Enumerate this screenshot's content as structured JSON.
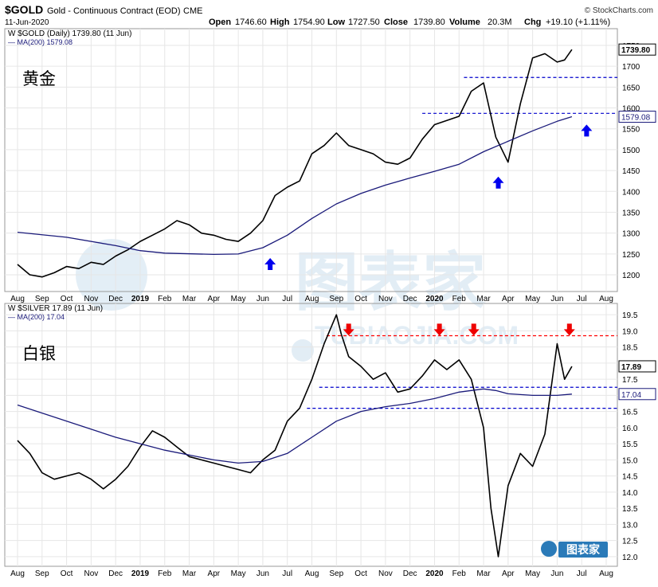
{
  "header": {
    "symbol": "$GOLD",
    "name": "Gold - Continuous Contract (EOD)",
    "exchange": "CME",
    "date": "11-Jun-2020",
    "source": "© StockCharts.com",
    "open_label": "Open",
    "open": "1746.60",
    "high_label": "High",
    "high": "1754.90",
    "low_label": "Low",
    "low": "1727.50",
    "close_label": "Close",
    "close": "1739.80",
    "volume_label": "Volume",
    "volume": "20.3M",
    "chg_label": "Chg",
    "chg": "+19.10 (+1.11%)"
  },
  "watermark": {
    "cn": "图表家",
    "en": "TUBIAOJIA.COM",
    "logo_text": "图表家"
  },
  "colors": {
    "price": "#000000",
    "ma": "#1a1a7a",
    "support": "#0000cc",
    "resistance": "#ff0000",
    "arrow_up": "#0000ee",
    "arrow_down": "#ee0000",
    "grid": "#e6e6e6"
  },
  "chart_data": [
    {
      "type": "line",
      "id": "gold",
      "panel_label": "黄金",
      "legend": [
        {
          "text": "$GOLD (Daily) 1739.80 (11 Jun)",
          "color": "#000000"
        },
        {
          "text": "MA(200) 1579.08",
          "color": "#1a1a7a"
        }
      ],
      "x_ticks": [
        "Aug",
        "Sep",
        "Oct",
        "Nov",
        "Dec",
        "2019",
        "Feb",
        "Mar",
        "Apr",
        "May",
        "Jun",
        "Jul",
        "Aug",
        "Sep",
        "Oct",
        "Nov",
        "Dec",
        "2020",
        "Feb",
        "Mar",
        "Apr",
        "May",
        "Jun",
        "Jul",
        "Aug"
      ],
      "y_ticks": [
        1200,
        1250,
        1300,
        1350,
        1400,
        1450,
        1500,
        1550,
        1600,
        1650,
        1700,
        1750
      ],
      "ylim": [
        1160,
        1790
      ],
      "last_price_label": "1739.80",
      "ma_label": "1579.08",
      "series": [
        {
          "name": "$GOLD (Daily)",
          "x": [
            0,
            0.5,
            1,
            1.5,
            2,
            2.5,
            3,
            3.5,
            4,
            4.5,
            5,
            5.5,
            6,
            6.5,
            7,
            7.5,
            8,
            8.5,
            9,
            9.5,
            10,
            10.5,
            11,
            11.5,
            12,
            12.5,
            13,
            13.5,
            14,
            14.5,
            15,
            15.5,
            16,
            16.5,
            17,
            17.5,
            18,
            18.5,
            19,
            19.5,
            20,
            20.5,
            21,
            21.5,
            22,
            22.3,
            22.6
          ],
          "values": [
            1225,
            1200,
            1195,
            1205,
            1220,
            1215,
            1230,
            1225,
            1245,
            1260,
            1280,
            1295,
            1310,
            1330,
            1320,
            1300,
            1295,
            1285,
            1280,
            1300,
            1330,
            1390,
            1410,
            1425,
            1490,
            1510,
            1540,
            1510,
            1500,
            1490,
            1470,
            1465,
            1480,
            1525,
            1560,
            1570,
            1580,
            1640,
            1660,
            1530,
            1470,
            1610,
            1720,
            1730,
            1710,
            1715,
            1740
          ]
        },
        {
          "name": "MA(200)",
          "x": [
            0,
            2,
            4,
            5,
            6,
            8,
            9,
            10,
            11,
            12,
            13,
            14,
            15,
            16,
            17,
            18,
            19,
            20,
            21,
            22,
            22.6
          ],
          "values": [
            1302,
            1290,
            1270,
            1258,
            1252,
            1249,
            1250,
            1265,
            1295,
            1335,
            1370,
            1395,
            1415,
            1432,
            1448,
            1465,
            1495,
            1520,
            1545,
            1568,
            1579
          ]
        }
      ],
      "hlines": [
        {
          "value": 1673,
          "from": 18.2,
          "to": 24.5,
          "color": "#0000cc"
        },
        {
          "value": 1587,
          "from": 16.5,
          "to": 24.5,
          "color": "#0000cc"
        }
      ],
      "arrows": [
        {
          "dir": "up",
          "x": 10.3,
          "value": 1225
        },
        {
          "dir": "up",
          "x": 19.6,
          "value": 1420
        },
        {
          "dir": "up",
          "x": 23.2,
          "value": 1545
        }
      ]
    },
    {
      "type": "line",
      "id": "silver",
      "panel_label": "白银",
      "legend": [
        {
          "text": "$SILVER 17.89 (11 Jun)",
          "color": "#000000"
        },
        {
          "text": "MA(200) 17.04",
          "color": "#1a1a7a"
        }
      ],
      "x_ticks": [
        "Aug",
        "Sep",
        "Oct",
        "Nov",
        "Dec",
        "2019",
        "Feb",
        "Mar",
        "Apr",
        "May",
        "Jun",
        "Jul",
        "Aug",
        "Sep",
        "Oct",
        "Nov",
        "Dec",
        "2020",
        "Feb",
        "Mar",
        "Apr",
        "May",
        "Jun",
        "Jul",
        "Aug"
      ],
      "y_ticks": [
        12.0,
        12.5,
        13.0,
        13.5,
        14.0,
        14.5,
        15.0,
        15.5,
        16.0,
        16.5,
        17.0,
        17.5,
        18.0,
        18.5,
        19.0,
        19.5
      ],
      "ylim": [
        11.7,
        19.85
      ],
      "last_price_label": "17.89",
      "ma_label": "17.04",
      "series": [
        {
          "name": "$SILVER",
          "x": [
            0,
            0.5,
            1,
            1.5,
            2,
            2.5,
            3,
            3.5,
            4,
            4.5,
            5,
            5.5,
            6,
            6.5,
            7,
            7.5,
            8,
            8.5,
            9,
            9.5,
            10,
            10.5,
            11,
            11.5,
            12,
            12.5,
            13,
            13.2,
            13.5,
            14,
            14.5,
            15,
            15.5,
            16,
            16.5,
            17,
            17.5,
            18,
            18.5,
            19,
            19.3,
            19.6,
            20,
            20.5,
            21,
            21.5,
            22,
            22.3,
            22.6
          ],
          "values": [
            15.6,
            15.2,
            14.6,
            14.4,
            14.5,
            14.6,
            14.4,
            14.1,
            14.4,
            14.8,
            15.4,
            15.9,
            15.7,
            15.4,
            15.1,
            15.0,
            14.9,
            14.8,
            14.7,
            14.6,
            15.0,
            15.3,
            16.2,
            16.6,
            17.5,
            18.6,
            19.5,
            18.9,
            18.2,
            17.9,
            17.5,
            17.7,
            17.1,
            17.2,
            17.6,
            18.1,
            17.8,
            18.1,
            17.5,
            16.0,
            13.5,
            12.0,
            14.2,
            15.2,
            14.8,
            15.8,
            18.6,
            17.5,
            17.9
          ]
        },
        {
          "name": "MA(200)",
          "x": [
            0,
            2,
            4,
            6,
            8,
            9,
            10,
            11,
            12,
            13,
            14,
            15,
            16,
            17,
            18,
            19,
            19.5,
            20,
            21,
            22,
            22.6
          ],
          "values": [
            16.7,
            16.2,
            15.7,
            15.3,
            15.0,
            14.9,
            14.95,
            15.2,
            15.7,
            16.2,
            16.5,
            16.65,
            16.75,
            16.9,
            17.1,
            17.2,
            17.15,
            17.05,
            17.0,
            17.0,
            17.04
          ]
        }
      ],
      "hlines": [
        {
          "value": 18.85,
          "from": 12.6,
          "to": 24.5,
          "color": "#ff0000"
        },
        {
          "value": 17.25,
          "from": 12.3,
          "to": 24.5,
          "color": "#0000cc"
        },
        {
          "value": 16.6,
          "from": 11.8,
          "to": 24.5,
          "color": "#0000cc"
        }
      ],
      "arrows": [
        {
          "dir": "down",
          "x": 13.5,
          "value": 19.05
        },
        {
          "dir": "down",
          "x": 17.2,
          "value": 19.05
        },
        {
          "dir": "down",
          "x": 18.6,
          "value": 19.05
        },
        {
          "dir": "down",
          "x": 22.5,
          "value": 19.05
        }
      ]
    }
  ]
}
